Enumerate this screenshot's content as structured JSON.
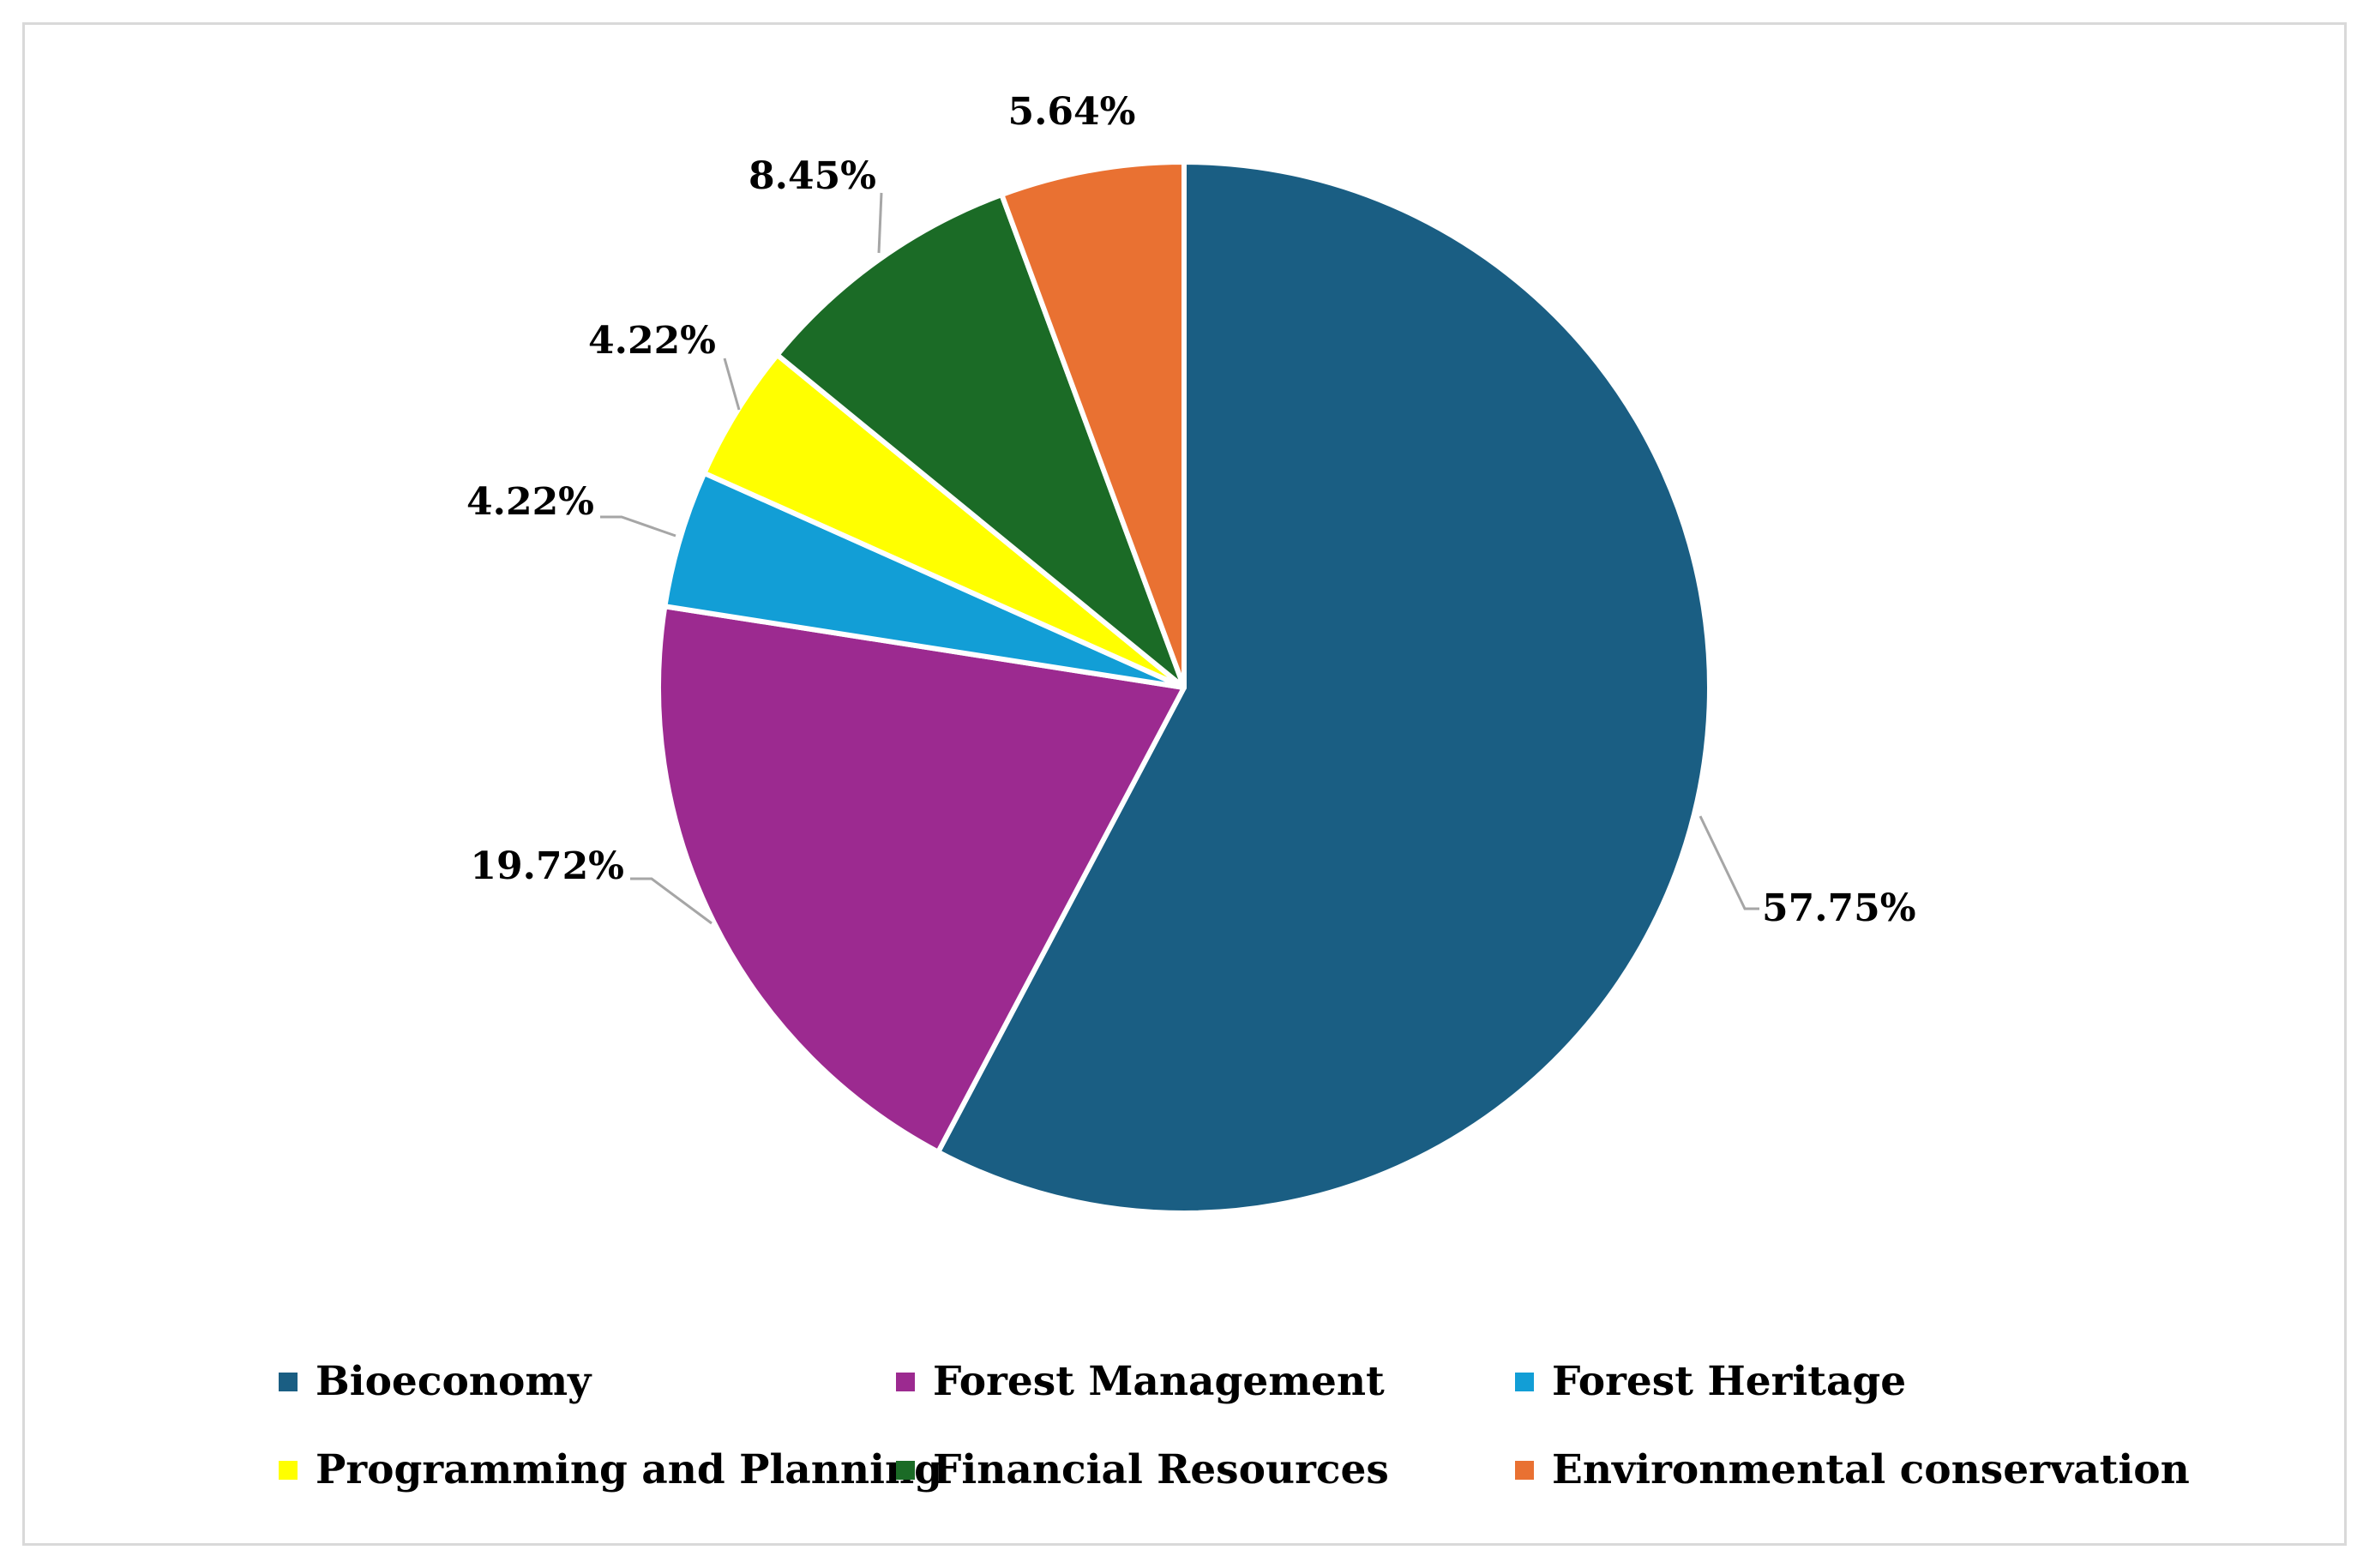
{
  "chart_data": {
    "type": "pie",
    "title": "",
    "legend_position": "bottom",
    "start_angle_deg": 0,
    "direction": "clockwise",
    "slices": [
      {
        "name": "Bioeconomy",
        "value": 57.75,
        "label": "57.75%",
        "color": "#1a5e83"
      },
      {
        "name": "Forest Management",
        "value": 19.72,
        "label": "19.72%",
        "color": "#9c2a90"
      },
      {
        "name": "Forest Heritage",
        "value": 4.22,
        "label": "4.22%",
        "color": "#129ed6"
      },
      {
        "name": "Programming and Planning",
        "value": 4.22,
        "label": "4.22%",
        "color": "#ffff00"
      },
      {
        "name": "Financial Resources",
        "value": 8.45,
        "label": "8.45%",
        "color": "#1b6b26"
      },
      {
        "name": "Environmental conservation",
        "value": 5.64,
        "label": "5.64%",
        "color": "#e97132"
      }
    ]
  }
}
